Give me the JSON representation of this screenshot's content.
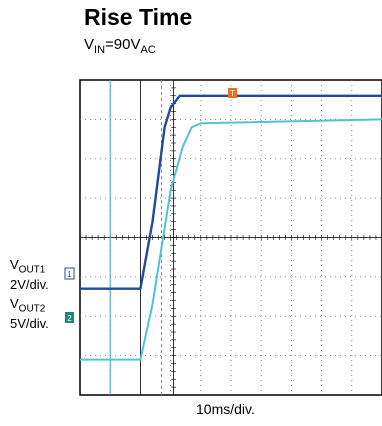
{
  "title": "Rise Time",
  "subtitle": {
    "prefix": "V",
    "sub1": "IN",
    "mid": "=90V",
    "sub2": "AC"
  },
  "channels": [
    {
      "name_prefix": "V",
      "name_sub": "OUT1",
      "scale": "2V/div.",
      "marker": "1",
      "color": "#1f4aa0"
    },
    {
      "name_prefix": "V",
      "name_sub": "OUT2",
      "scale": "5V/div.",
      "marker": "2",
      "color": "#4fc3d6"
    }
  ],
  "trigger_marker": "T",
  "x_scale_label": "10ms/div.",
  "chart_data": {
    "type": "line",
    "x_unit": "ms",
    "divisions": {
      "x": 10,
      "y": 8
    },
    "cursors_x": [
      10,
      20,
      27
    ],
    "series": [
      {
        "channel": "VOUT1",
        "volts_per_div": 2,
        "x": [
          0,
          20,
          24,
          28,
          30,
          33,
          36,
          100
        ],
        "y": [
          -1.3,
          -1.3,
          0.4,
          2.8,
          3.3,
          3.6,
          3.6,
          3.6
        ]
      },
      {
        "channel": "VOUT2",
        "volts_per_div": 5,
        "x": [
          0,
          20,
          24,
          30,
          34,
          37,
          40,
          100
        ],
        "y": [
          -3.1,
          -3.1,
          -1.7,
          1.2,
          2.3,
          2.8,
          2.9,
          3.0
        ]
      }
    ]
  }
}
